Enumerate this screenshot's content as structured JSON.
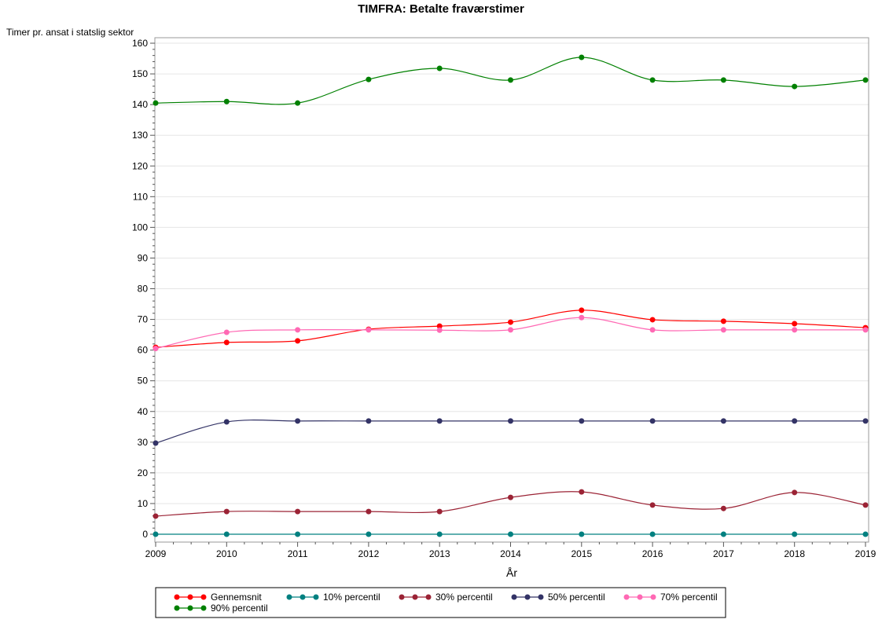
{
  "chart_data": {
    "type": "line",
    "title": "TIMFRA: Betalte fraværstimer",
    "xlabel": "År",
    "ylabel": "Timer pr. ansat i statslig sektor",
    "x": [
      2009,
      2010,
      2011,
      2012,
      2013,
      2014,
      2015,
      2016,
      2017,
      2018,
      2019
    ],
    "xlim": [
      2009,
      2019
    ],
    "ylim": [
      0,
      160
    ],
    "yticks": [
      0,
      10,
      20,
      30,
      40,
      50,
      60,
      70,
      80,
      90,
      100,
      110,
      120,
      130,
      140,
      150,
      160
    ],
    "grid": true,
    "legend_position": "bottom",
    "series": [
      {
        "name": "Gennemsnit",
        "color": "#ff0000",
        "values": [
          60.9,
          62.5,
          63.0,
          66.8,
          67.8,
          69.1,
          73.0,
          69.9,
          69.4,
          68.6,
          67.3
        ]
      },
      {
        "name": "10% percentil",
        "color": "#008080",
        "values": [
          0,
          0,
          0,
          0,
          0,
          0,
          0,
          0,
          0,
          0,
          0
        ]
      },
      {
        "name": "30% percentil",
        "color": "#9b2335",
        "values": [
          5.9,
          7.4,
          7.4,
          7.4,
          7.4,
          12.0,
          13.8,
          9.5,
          8.4,
          13.6,
          9.5
        ]
      },
      {
        "name": "50% percentil",
        "color": "#333366",
        "values": [
          29.7,
          36.6,
          36.9,
          36.9,
          36.9,
          36.9,
          36.9,
          36.9,
          36.9,
          36.9,
          36.9
        ]
      },
      {
        "name": "70% percentil",
        "color": "#ff69b4",
        "values": [
          60.5,
          65.8,
          66.6,
          66.6,
          66.5,
          66.6,
          70.6,
          66.6,
          66.6,
          66.6,
          66.6
        ]
      },
      {
        "name": "90% percentil",
        "color": "#008000",
        "values": [
          140.5,
          141.0,
          140.5,
          148.2,
          151.8,
          148.0,
          155.4,
          148.0,
          148.0,
          145.9,
          148.0
        ]
      }
    ]
  }
}
